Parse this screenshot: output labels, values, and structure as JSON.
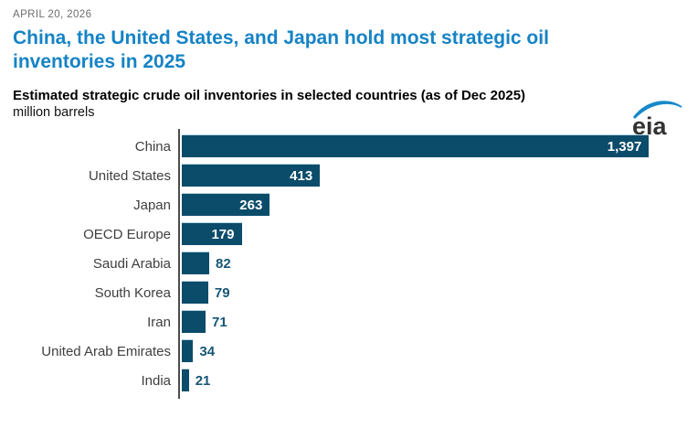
{
  "page": {
    "date": "APRIL 20, 2026",
    "title": "China, the United States, and Japan hold most strategic oil inventories in 2025"
  },
  "chart": {
    "subtitle": "Estimated strategic crude oil inventories in selected countries (as of Dec 2025)",
    "units": "million barrels"
  },
  "logo": {
    "text": "eia"
  },
  "colors": {
    "bar": "#0b4c6a",
    "title_blue": "#1583c5",
    "value_outside": "#175676",
    "axis": "#4d4d4d",
    "logo_swoosh": "#1789c9",
    "logo_text": "#333333"
  },
  "chart_data": {
    "type": "bar",
    "orientation": "horizontal",
    "title": "Estimated strategic crude oil inventories in selected countries (as of Dec 2025)",
    "xlabel": "million barrels",
    "ylabel": "",
    "categories": [
      "China",
      "United States",
      "Japan",
      "OECD Europe",
      "Saudi Arabia",
      "South Korea",
      "Iran",
      "United Arab Emirates",
      "India"
    ],
    "values": [
      1397,
      413,
      263,
      179,
      82,
      79,
      71,
      34,
      21
    ],
    "value_labels": [
      "1,397",
      "413",
      "263",
      "179",
      "82",
      "79",
      "71",
      "34",
      "21"
    ],
    "xlim": [
      0,
      1500
    ],
    "grid": false,
    "legend": false
  }
}
